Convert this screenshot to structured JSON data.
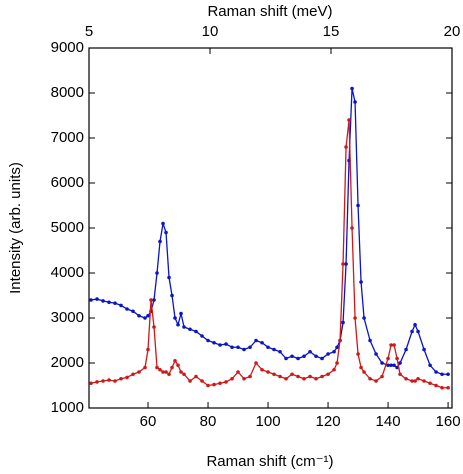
{
  "chart_data": {
    "type": "line",
    "xlabel": "Raman shift (cm⁻¹)",
    "x2label": "Raman shift (meV)",
    "ylabel": "Intensity (arb. units)",
    "x": [
      41,
      43,
      45,
      47,
      49,
      51,
      53,
      55,
      57,
      59,
      60,
      61,
      62,
      63,
      64,
      65,
      66,
      67,
      68,
      69,
      70,
      71,
      72,
      74,
      76,
      78,
      80,
      82,
      84,
      86,
      88,
      90,
      92,
      94,
      96,
      98,
      100,
      102,
      104,
      106,
      108,
      110,
      112,
      114,
      116,
      118,
      120,
      122,
      123,
      124,
      125,
      126,
      127,
      128,
      129,
      130,
      131,
      132,
      134,
      136,
      138,
      140,
      141,
      142,
      143,
      144,
      146,
      148,
      149,
      150,
      152,
      154,
      156,
      158,
      160
    ],
    "series": [
      {
        "color": "#0a14c8",
        "values": [
          3400,
          3420,
          3380,
          3350,
          3330,
          3280,
          3200,
          3150,
          3050,
          3000,
          3050,
          3150,
          3400,
          4000,
          4700,
          5100,
          4900,
          3900,
          3500,
          3000,
          2850,
          3100,
          2800,
          2750,
          2700,
          2600,
          2500,
          2450,
          2400,
          2420,
          2350,
          2350,
          2300,
          2350,
          2500,
          2450,
          2350,
          2300,
          2250,
          2100,
          2150,
          2100,
          2150,
          2250,
          2150,
          2100,
          2200,
          2250,
          2350,
          2500,
          2900,
          4200,
          6500,
          8100,
          7800,
          5500,
          3800,
          3000,
          2500,
          2200,
          2000,
          1950,
          1950,
          1950,
          1900,
          2000,
          2300,
          2700,
          2850,
          2700,
          2300,
          1950,
          1800,
          1750,
          1750
        ]
      },
      {
        "color": "#d01818",
        "values": [
          1550,
          1580,
          1600,
          1620,
          1600,
          1650,
          1680,
          1750,
          1800,
          1900,
          2300,
          3400,
          2800,
          1900,
          1850,
          1800,
          1800,
          1750,
          1900,
          2050,
          1950,
          1800,
          1750,
          1600,
          1700,
          1600,
          1500,
          1520,
          1550,
          1580,
          1650,
          1800,
          1650,
          1700,
          2000,
          1850,
          1800,
          1750,
          1700,
          1650,
          1750,
          1700,
          1650,
          1700,
          1650,
          1700,
          1750,
          1850,
          2000,
          2500,
          4200,
          6800,
          7400,
          5000,
          3000,
          2200,
          1900,
          1800,
          1650,
          1600,
          1700,
          2100,
          2400,
          2400,
          2100,
          1750,
          1650,
          1600,
          1600,
          1650,
          1600,
          1550,
          1500,
          1450,
          1450
        ]
      }
    ],
    "xlim": [
      40.33,
      161.31
    ],
    "xticks": [
      60,
      80,
      100,
      120,
      140,
      160
    ],
    "x2lim": [
      5,
      20
    ],
    "x2ticks": [
      5,
      10,
      15,
      20
    ],
    "ylim": [
      1000,
      9000
    ],
    "yticks": [
      1000,
      2000,
      3000,
      4000,
      5000,
      6000,
      7000,
      8000,
      9000
    ]
  }
}
